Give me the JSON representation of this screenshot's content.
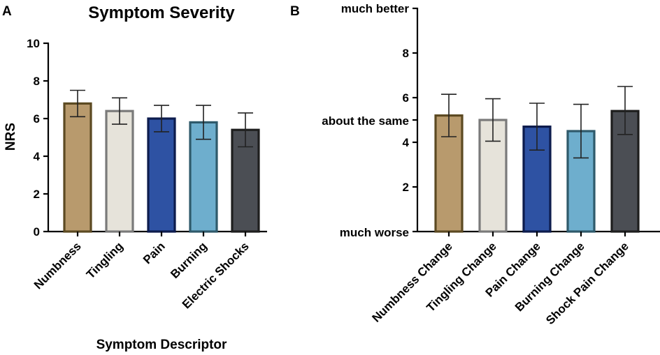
{
  "chart_data": [
    {
      "panel": "A",
      "type": "bar",
      "title": "Symptom Severity",
      "xlabel": "Symptom Descriptor",
      "ylabel": "NRS",
      "ylim": [
        0,
        10
      ],
      "yticks": [
        "0",
        "2",
        "4",
        "6",
        "8",
        "10"
      ],
      "categories": [
        "Numbness",
        "Tingling",
        "Pain",
        "Burning",
        "Electric Shocks"
      ],
      "values": [
        6.8,
        6.4,
        6.0,
        5.8,
        5.4
      ],
      "error_low": [
        6.1,
        5.7,
        5.3,
        4.9,
        4.5
      ],
      "error_high": [
        7.5,
        7.1,
        6.7,
        6.7,
        6.3
      ],
      "fill_colors": [
        "#b89a6d",
        "#e6e3da",
        "#2e52a3",
        "#6eaecd",
        "#4b4e54"
      ],
      "edge_colors": [
        "#5c4a22",
        "#7a7a7a",
        "#0d1c4d",
        "#2f5a6b",
        "#1e1e1e"
      ]
    },
    {
      "panel": "B",
      "type": "bar",
      "title": "",
      "xlabel": "",
      "ylabel": "",
      "ylim": [
        0,
        10
      ],
      "yticks": [
        "2",
        "4",
        "6",
        "8"
      ],
      "ylabels": {
        "much_worse": "much worse",
        "about_same": "about the same",
        "much_better": "much better"
      },
      "categories": [
        "Numbness Change",
        "Tingling Change",
        "Pain Change",
        "Burning Change",
        "Shock Pain Change"
      ],
      "values": [
        5.2,
        5.0,
        4.7,
        4.5,
        5.4
      ],
      "error_low": [
        4.25,
        4.05,
        3.65,
        3.3,
        4.35
      ],
      "error_high": [
        6.15,
        5.95,
        5.75,
        5.7,
        6.5
      ],
      "fill_colors": [
        "#b89a6d",
        "#e6e3da",
        "#2e52a3",
        "#6eaecd",
        "#4b4e54"
      ],
      "edge_colors": [
        "#5c4a22",
        "#7a7a7a",
        "#0d1c4d",
        "#2f5a6b",
        "#1e1e1e"
      ]
    }
  ]
}
